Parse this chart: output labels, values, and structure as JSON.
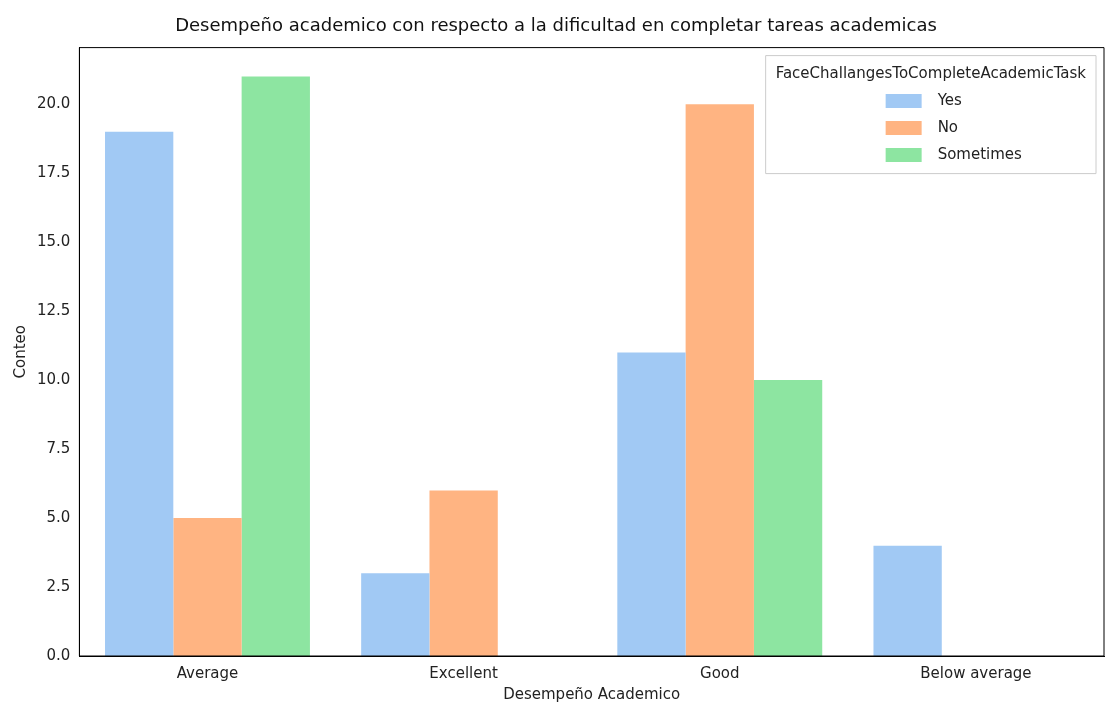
{
  "chart_data": {
    "type": "bar",
    "title": "Desempeño academico con respecto a la dificultad en completar tareas academicas",
    "xlabel": "Desempeño Academico",
    "ylabel": "Conteo",
    "categories": [
      "Average",
      "Excellent",
      "Good",
      "Below average"
    ],
    "series": [
      {
        "name": "Yes",
        "color": "#a1c9f4",
        "values": [
          19,
          3,
          11,
          4
        ]
      },
      {
        "name": "No",
        "color": "#ffb482",
        "values": [
          5,
          6,
          20,
          null
        ]
      },
      {
        "name": "Sometimes",
        "color": "#8de5a1",
        "values": [
          21,
          null,
          10,
          null
        ]
      }
    ],
    "legend_title": "FaceChallangesToCompleteAcademicTask",
    "legend": "top right",
    "grid": false,
    "ylim": [
      0,
      22.05
    ],
    "yticks": [
      {
        "value": 0,
        "label": "0.0"
      },
      {
        "value": 2.5,
        "label": "2.5"
      },
      {
        "value": 5,
        "label": "5.0"
      },
      {
        "value": 7.5,
        "label": "7.5"
      },
      {
        "value": 10,
        "label": "10.0"
      },
      {
        "value": 12.5,
        "label": "12.5"
      },
      {
        "value": 15,
        "label": "15.0"
      },
      {
        "value": 17.5,
        "label": "17.5"
      },
      {
        "value": 20,
        "label": "20.0"
      }
    ]
  }
}
